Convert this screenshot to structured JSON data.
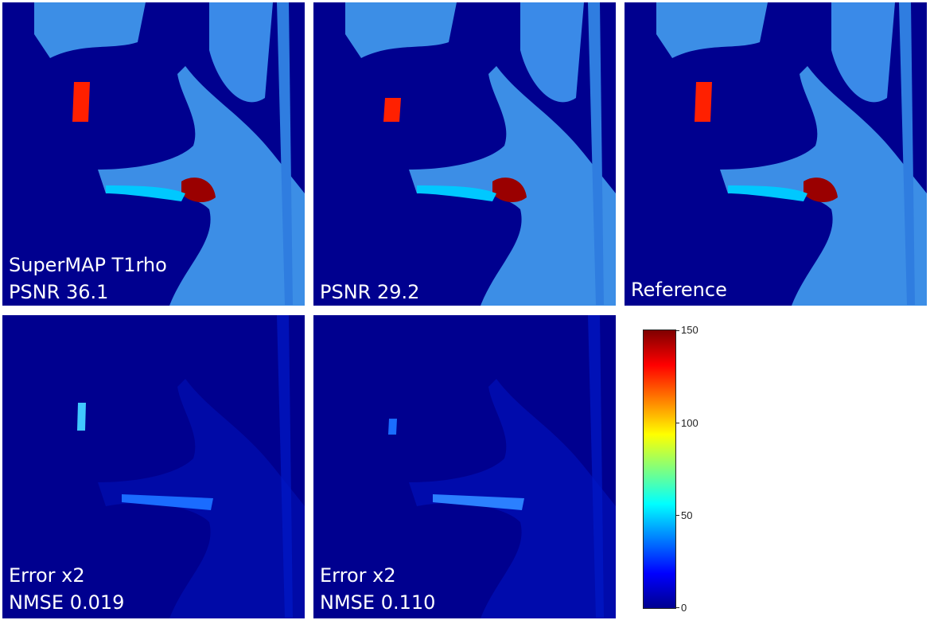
{
  "panels": [
    {
      "id": "supermap",
      "label_lines": [
        "SuperMAP T1rho",
        "PSNR 36.1"
      ]
    },
    {
      "id": "psnr-29",
      "label_lines": [
        "PSNR 29.2"
      ]
    },
    {
      "id": "reference",
      "label_lines": [
        "Reference"
      ]
    },
    {
      "id": "error-1",
      "label_lines": [
        "Error x2",
        "NMSE 0.019"
      ]
    },
    {
      "id": "error-2",
      "label_lines": [
        "Error x2",
        "NMSE 0.110"
      ]
    }
  ],
  "colorbar": {
    "ticks": [
      "150",
      "100",
      "50",
      "0"
    ],
    "range": [
      0,
      150
    ],
    "colormap": "jet"
  },
  "colors": {
    "background_tissue": "#00008f",
    "tissue": "#3a8ae8",
    "hot": "#b00000"
  }
}
